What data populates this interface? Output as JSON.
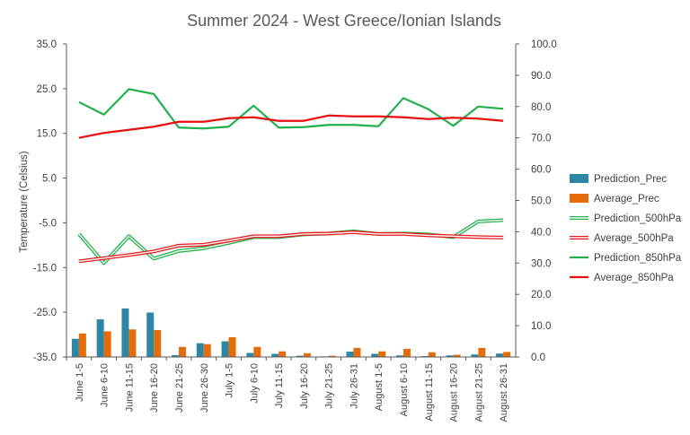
{
  "chart_data": {
    "type": "bar+line",
    "title": "Summer 2024 - West Greece/Ionian Islands",
    "ylabel": "Temperature  (Celsius)",
    "categories": [
      "June 1-5",
      "June 6-10",
      "June 11-15",
      "June 16-20",
      "June 21-25",
      "June 26-30",
      "July 1-5",
      "July 6-10",
      "July 11-15",
      "July 16-20",
      "July 21-25",
      "July 26-31",
      "August 1-5",
      "August 6-10",
      "August 11-15",
      "August 16-20",
      "August 21-25",
      "August 26-31"
    ],
    "ylim_left": [
      -35,
      35
    ],
    "yticks_left": [
      "35.0",
      "25.0",
      "15.0",
      "5.0",
      "-5.0",
      "-15.0",
      "-25.0",
      "-35.0"
    ],
    "ylim_right": [
      0,
      100
    ],
    "yticks_right": [
      "100.0",
      "90.0",
      "80.0",
      "70.0",
      "60.0",
      "50.0",
      "40.0",
      "30.0",
      "20.0",
      "10.0",
      "0.0"
    ],
    "legend_position": "right",
    "colors": {
      "prediction_prec": "#2e86a5",
      "average_prec": "#e46c0a",
      "prediction_500": "#22b14c",
      "average_500": "#e3191c",
      "prediction_850": "#21b04b",
      "average_850": "#e80e0e",
      "axis": "#595959",
      "grid": "#d9d9d9"
    },
    "series": [
      {
        "name": "Prediction_Prec",
        "type": "bar",
        "axis": "right",
        "color_key": "prediction_prec",
        "values": [
          5.8,
          12.0,
          15.5,
          14.2,
          0.6,
          4.4,
          5.0,
          1.3,
          1.0,
          0.4,
          0.2,
          1.7,
          1.0,
          0.5,
          0.3,
          0.5,
          0.8,
          1.1
        ]
      },
      {
        "name": "Average_Prec",
        "type": "bar",
        "axis": "right",
        "color_key": "average_prec",
        "values": [
          7.5,
          8.2,
          8.8,
          8.6,
          3.2,
          4.1,
          6.3,
          3.2,
          1.8,
          1.2,
          0.4,
          2.9,
          1.8,
          2.6,
          1.5,
          0.7,
          2.9,
          1.6
        ]
      },
      {
        "name": "Prediction_500hPa",
        "type": "line",
        "style": "double",
        "axis": "left",
        "color_key": "prediction_500",
        "values": [
          -7.5,
          -14.0,
          -8.0,
          -13.0,
          -11.3,
          -10.7,
          -9.5,
          -8.2,
          -8.2,
          -7.6,
          -7.4,
          -6.9,
          -7.5,
          -7.4,
          -7.6,
          -8.2,
          -4.7,
          -4.4
        ]
      },
      {
        "name": "Average_500hPa",
        "type": "line",
        "style": "double",
        "axis": "left",
        "color_key": "average_500",
        "values": [
          -13.6,
          -12.9,
          -12.2,
          -11.4,
          -10.1,
          -9.9,
          -9.0,
          -8.0,
          -8.0,
          -7.5,
          -7.4,
          -7.1,
          -7.5,
          -7.5,
          -7.8,
          -8.0,
          -8.2,
          -8.3
        ]
      },
      {
        "name": "Prediction_850hPa",
        "type": "line",
        "style": "single",
        "axis": "left",
        "color_key": "prediction_850",
        "values": [
          22.0,
          19.2,
          24.9,
          23.8,
          16.3,
          16.1,
          16.5,
          21.2,
          16.3,
          16.4,
          16.9,
          16.9,
          16.6,
          22.9,
          20.4,
          16.7,
          21.0,
          20.5
        ]
      },
      {
        "name": "Average_850hPa",
        "type": "line",
        "style": "single",
        "axis": "left",
        "color_key": "average_850",
        "values": [
          14.0,
          15.1,
          15.8,
          16.5,
          17.6,
          17.6,
          18.4,
          18.6,
          17.8,
          17.8,
          19.0,
          18.8,
          18.8,
          18.6,
          18.2,
          18.5,
          18.3,
          17.8
        ]
      }
    ]
  }
}
